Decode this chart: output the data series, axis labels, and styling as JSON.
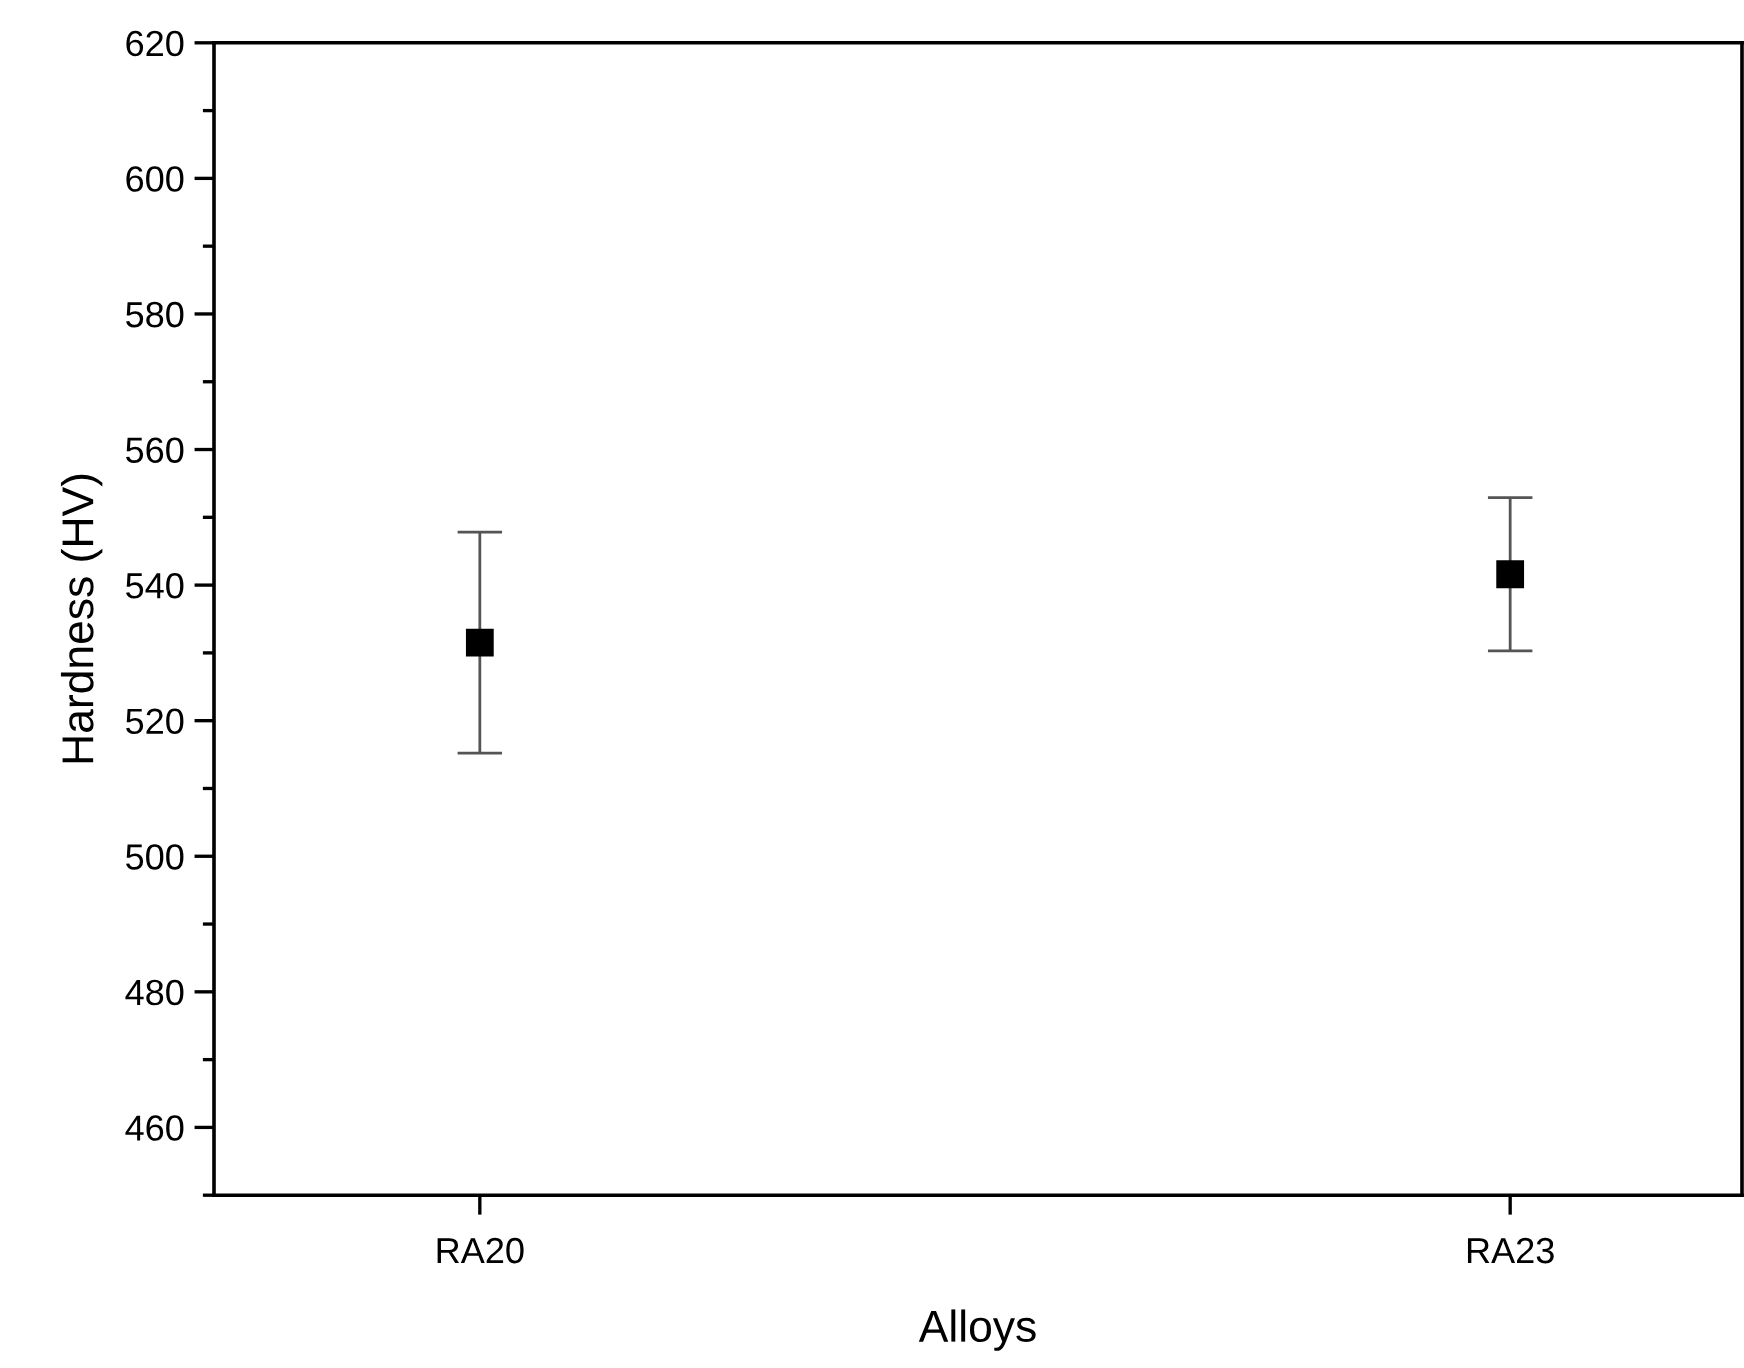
{
  "chart_data": {
    "type": "scatter",
    "xlabel": "Alloys",
    "ylabel": "Hardness (HV)",
    "categories": [
      "RA20",
      "RA23"
    ],
    "series": [
      {
        "color": "#000000",
        "values": [
          531.5,
          541.6
        ],
        "errors": [
          16.3,
          11.3
        ]
      }
    ],
    "marker": "square",
    "ylim": [
      450,
      620
    ],
    "yticks": [
      460,
      480,
      500,
      520,
      540,
      560,
      580,
      600,
      620
    ]
  }
}
